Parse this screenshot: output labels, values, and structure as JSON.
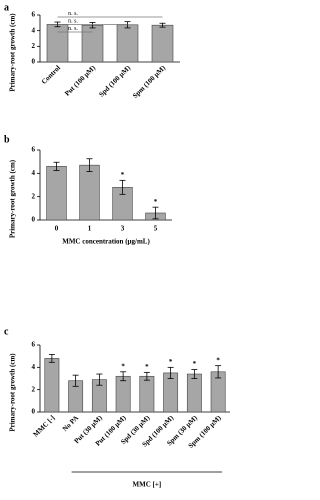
{
  "chart_data": [
    {
      "type": "bar",
      "panel": "a",
      "ylabel": "Primary-root growth (cm)",
      "color": "#a6a6a6",
      "categories": [
        "Control",
        "Put (100 μM)",
        "Spd (100 μM)",
        "Spm (100 μM)"
      ],
      "values": [
        4.8,
        4.7,
        4.75,
        4.7
      ],
      "errors": [
        0.3,
        0.35,
        0.4,
        0.25
      ],
      "ylim": [
        0,
        6
      ],
      "yticks": [
        0,
        2,
        4,
        6
      ],
      "comparisons": [
        {
          "from": 0,
          "to": 1,
          "label": "n. s."
        },
        {
          "from": 0,
          "to": 2,
          "label": "n. s."
        },
        {
          "from": 0,
          "to": 3,
          "label": "n. s."
        }
      ]
    },
    {
      "type": "bar",
      "panel": "b",
      "ylabel": "Primary-root growth (cm)",
      "xlabel": "MMC concentration (μg/mL)",
      "color": "#a6a6a6",
      "categories": [
        "0",
        "1",
        "3",
        "5"
      ],
      "values": [
        4.6,
        4.7,
        2.8,
        0.6
      ],
      "errors": [
        0.35,
        0.55,
        0.6,
        0.5
      ],
      "significance": [
        null,
        null,
        "*",
        "*"
      ],
      "ylim": [
        0,
        6
      ],
      "yticks": [
        0,
        2,
        4,
        6
      ]
    },
    {
      "type": "bar",
      "panel": "c",
      "ylabel": "Primary-root growth (cm)",
      "color": "#a6a6a6",
      "categories": [
        "MMC [-]",
        "No PA",
        "Put (30 μM)",
        "Put (100 μM)",
        "Spd (30 μM)",
        "Spd (100 μM)",
        "Spm (30 μM)",
        "Spm (100 μM)"
      ],
      "values": [
        4.8,
        2.8,
        2.9,
        3.2,
        3.2,
        3.5,
        3.4,
        3.6
      ],
      "errors": [
        0.35,
        0.5,
        0.5,
        0.4,
        0.35,
        0.5,
        0.4,
        0.55
      ],
      "significance": [
        null,
        null,
        null,
        "*",
        "*",
        "*",
        "*",
        "*"
      ],
      "group_label": {
        "text": "MMC [+]",
        "from": 1,
        "to": 7
      },
      "ylim": [
        0,
        6
      ],
      "yticks": [
        0,
        2,
        4,
        6
      ]
    }
  ]
}
